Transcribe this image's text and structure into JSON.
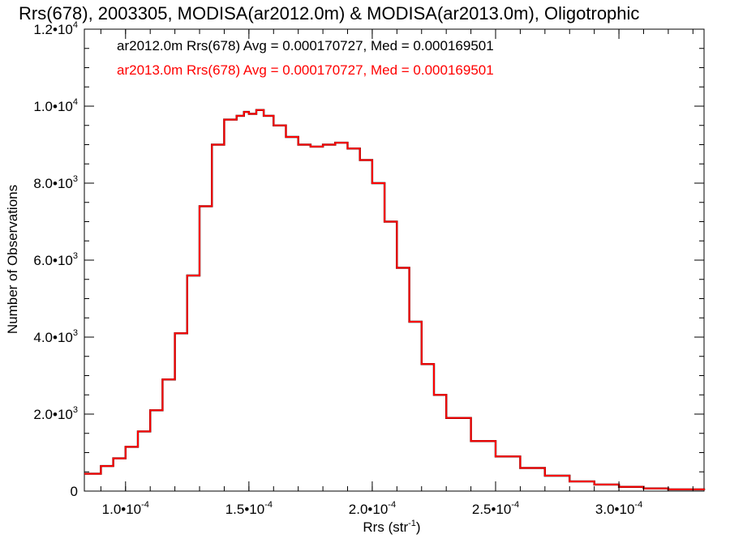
{
  "chart_data": {
    "type": "line",
    "title": "Rrs(678), 2003305, MODISA(ar2012.0m) & MODISA(ar2013.0m), Oligotrophic",
    "xlabel": {
      "base": "Rrs (str",
      "sup": "-1",
      "close": ")"
    },
    "ylabel": "Number of Observations",
    "xlim": [
      8.33e-05,
      0.0003345
    ],
    "ylim": [
      0,
      12000
    ],
    "x_ticks": [
      {
        "value": 0.0001,
        "mant": "1.0",
        "exp": "-4"
      },
      {
        "value": 0.00015,
        "mant": "1.5",
        "exp": "-4"
      },
      {
        "value": 0.0002,
        "mant": "2.0",
        "exp": "-4"
      },
      {
        "value": 0.00025,
        "mant": "2.5",
        "exp": "-4"
      },
      {
        "value": 0.0003,
        "mant": "3.0",
        "exp": "-4"
      }
    ],
    "y_ticks": [
      {
        "value": 0,
        "mant": "0",
        "exp": ""
      },
      {
        "value": 2000,
        "mant": "2.0",
        "exp": "3"
      },
      {
        "value": 4000,
        "mant": "4.0",
        "exp": "3"
      },
      {
        "value": 6000,
        "mant": "6.0",
        "exp": "3"
      },
      {
        "value": 8000,
        "mant": "8.0",
        "exp": "3"
      },
      {
        "value": 10000,
        "mant": "1.0",
        "exp": "4"
      },
      {
        "value": 12000,
        "mant": "1.2",
        "exp": "4"
      }
    ],
    "annotations": [
      {
        "text": "ar2012.0m Rrs(678) Avg = 0.000170727, Med = 0.000169501",
        "color": "#000000"
      },
      {
        "text": "ar2013.0m Rrs(678) Avg = 0.000170727, Med = 0.000169501",
        "color": "#ff0000"
      }
    ],
    "series": [
      {
        "color": "#000000",
        "step": true
      },
      {
        "color": "#ff0000",
        "step": true
      }
    ],
    "x": [
      8.33e-05,
      9e-05,
      9.5e-05,
      0.0001,
      0.000105,
      0.00011,
      0.000115,
      0.00012,
      0.000125,
      0.00013,
      0.000135,
      0.00014,
      0.000145,
      0.000148,
      0.00015,
      0.000153,
      0.000156,
      0.00016,
      0.000165,
      0.00017,
      0.000175,
      0.00018,
      0.000185,
      0.00019,
      0.000195,
      0.0002,
      0.000205,
      0.00021,
      0.000215,
      0.00022,
      0.000225,
      0.00023,
      0.00024,
      0.00025,
      0.00026,
      0.00027,
      0.00028,
      0.00029,
      0.0003,
      0.00031,
      0.00032,
      0.0003345
    ],
    "y": [
      450,
      650,
      850,
      1150,
      1550,
      2100,
      2900,
      4100,
      5600,
      7400,
      9000,
      9650,
      9750,
      9850,
      9800,
      9900,
      9750,
      9500,
      9200,
      9000,
      8950,
      9000,
      9050,
      8900,
      8600,
      8000,
      7000,
      5800,
      4400,
      3300,
      2500,
      1900,
      1300,
      900,
      600,
      400,
      250,
      170,
      110,
      70,
      45,
      20
    ]
  }
}
